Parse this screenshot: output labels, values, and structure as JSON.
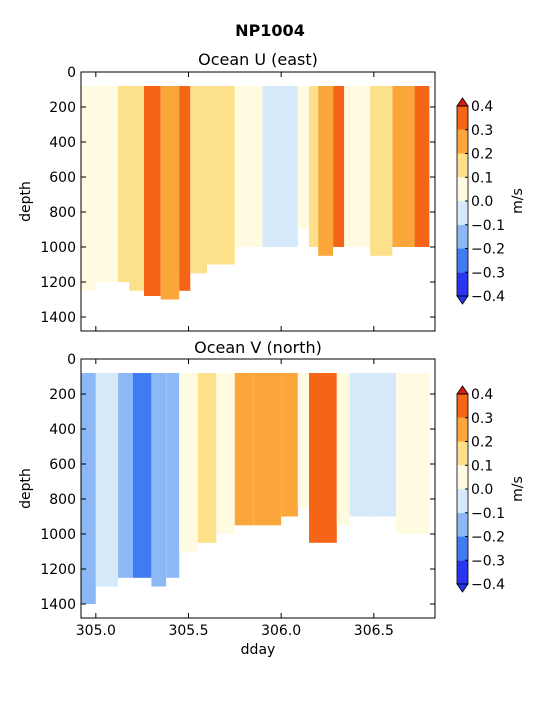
{
  "suptitle": "NP1004",
  "colorbar": {
    "unit": "m/s",
    "levels": [
      -0.4,
      -0.3,
      -0.2,
      -0.1,
      0.0,
      0.1,
      0.2,
      0.3,
      0.4
    ],
    "tick_labels": [
      "−0.4",
      "−0.3",
      "−0.2",
      "−0.1",
      "0.0",
      "0.1",
      "0.2",
      "0.3",
      "0.4"
    ],
    "colors": [
      "#2a35f0",
      "#3f7cf2",
      "#8cb8f6",
      "#d6e9fb",
      "#fffbe0",
      "#fde18a",
      "#fba63a",
      "#f46517",
      "#d41f10"
    ],
    "extend": "both"
  },
  "chart_data": [
    {
      "type": "heatmap",
      "title": "Ocean U (east)",
      "xlabel": "",
      "ylabel": "depth",
      "xlim": [
        304.92,
        306.83
      ],
      "ylim": [
        1480,
        0
      ],
      "y_ticks": [
        0,
        200,
        400,
        600,
        800,
        1000,
        1200,
        1400
      ],
      "y_tick_labels": [
        "0",
        "200",
        "400",
        "600",
        "800",
        "1000",
        "1200",
        "1400"
      ],
      "x_ticks": [
        305.0,
        305.5,
        306.0,
        306.5
      ],
      "x_tick_labels": [],
      "bins": [
        {
          "x": [
            304.92,
            305.0
          ],
          "d": [
            80,
            1250
          ],
          "v": 0.05
        },
        {
          "x": [
            305.0,
            305.12
          ],
          "d": [
            80,
            1200
          ],
          "v": 0.08
        },
        {
          "x": [
            305.12,
            305.18
          ],
          "d": [
            80,
            1200
          ],
          "v": 0.12
        },
        {
          "x": [
            305.18,
            305.26
          ],
          "d": [
            80,
            1250
          ],
          "v": 0.15
        },
        {
          "x": [
            305.26,
            305.35
          ],
          "d": [
            80,
            1280
          ],
          "v": 0.32
        },
        {
          "x": [
            305.35,
            305.45
          ],
          "d": [
            80,
            1300
          ],
          "v": 0.28
        },
        {
          "x": [
            305.45,
            305.51
          ],
          "d": [
            80,
            1250
          ],
          "v": 0.3
        },
        {
          "x": [
            305.51,
            305.6
          ],
          "d": [
            80,
            1150
          ],
          "v": 0.12
        },
        {
          "x": [
            305.6,
            305.75
          ],
          "d": [
            80,
            1100
          ],
          "v": 0.1
        },
        {
          "x": [
            305.75,
            305.9
          ],
          "d": [
            80,
            1000
          ],
          "v": 0.05
        },
        {
          "x": [
            305.9,
            306.09
          ],
          "d": [
            80,
            1000
          ],
          "v": -0.05
        },
        {
          "x": [
            306.09,
            306.15
          ],
          "d": [
            80,
            900
          ],
          "v": 0.02
        },
        {
          "x": [
            306.15,
            306.2
          ],
          "d": [
            80,
            1000
          ],
          "v": 0.12
        },
        {
          "x": [
            306.2,
            306.28
          ],
          "d": [
            80,
            1050
          ],
          "v": 0.28
        },
        {
          "x": [
            306.28,
            306.34
          ],
          "d": [
            80,
            1000
          ],
          "v": 0.35
        },
        {
          "x": [
            306.34,
            306.48
          ],
          "d": [
            80,
            1000
          ],
          "v": 0.05
        },
        {
          "x": [
            306.48,
            306.6
          ],
          "d": [
            80,
            1050
          ],
          "v": 0.15
        },
        {
          "x": [
            306.6,
            306.72
          ],
          "d": [
            80,
            1000
          ],
          "v": 0.25
        },
        {
          "x": [
            306.72,
            306.8
          ],
          "d": [
            80,
            1000
          ],
          "v": 0.35
        }
      ]
    },
    {
      "type": "heatmap",
      "title": "Ocean V (north)",
      "xlabel": "dday",
      "ylabel": "depth",
      "xlim": [
        304.92,
        306.83
      ],
      "ylim": [
        1480,
        0
      ],
      "y_ticks": [
        0,
        200,
        400,
        600,
        800,
        1000,
        1200,
        1400
      ],
      "y_tick_labels": [
        "0",
        "200",
        "400",
        "600",
        "800",
        "1000",
        "1200",
        "1400"
      ],
      "x_ticks": [
        305.0,
        305.5,
        306.0,
        306.5
      ],
      "x_tick_labels": [
        "305.0",
        "305.5",
        "306.0",
        "306.5"
      ],
      "bins": [
        {
          "x": [
            304.92,
            305.0
          ],
          "d": [
            80,
            1400
          ],
          "v": -0.12
        },
        {
          "x": [
            305.0,
            305.12
          ],
          "d": [
            80,
            1300
          ],
          "v": -0.08
        },
        {
          "x": [
            305.12,
            305.2
          ],
          "d": [
            80,
            1250
          ],
          "v": -0.12
        },
        {
          "x": [
            305.2,
            305.3
          ],
          "d": [
            80,
            1250
          ],
          "v": -0.25
        },
        {
          "x": [
            305.3,
            305.38
          ],
          "d": [
            80,
            1300
          ],
          "v": -0.2
        },
        {
          "x": [
            305.38,
            305.45
          ],
          "d": [
            80,
            1250
          ],
          "v": -0.12
        },
        {
          "x": [
            305.45,
            305.55
          ],
          "d": [
            80,
            1100
          ],
          "v": 0.05
        },
        {
          "x": [
            305.55,
            305.65
          ],
          "d": [
            80,
            1050
          ],
          "v": 0.12
        },
        {
          "x": [
            305.65,
            305.75
          ],
          "d": [
            80,
            1000
          ],
          "v": 0.08
        },
        {
          "x": [
            305.75,
            305.85
          ],
          "d": [
            80,
            950
          ],
          "v": 0.2
        },
        {
          "x": [
            305.85,
            306.0
          ],
          "d": [
            80,
            950
          ],
          "v": 0.22
        },
        {
          "x": [
            306.0,
            306.09
          ],
          "d": [
            80,
            900
          ],
          "v": 0.25
        },
        {
          "x": [
            306.09,
            306.15
          ],
          "d": [
            80,
            850
          ],
          "v": 0.0
        },
        {
          "x": [
            306.15,
            306.3
          ],
          "d": [
            80,
            1050
          ],
          "v": 0.35
        },
        {
          "x": [
            306.3,
            306.37
          ],
          "d": [
            80,
            950
          ],
          "v": 0.05
        },
        {
          "x": [
            306.37,
            306.5
          ],
          "d": [
            80,
            900
          ],
          "v": -0.02
        },
        {
          "x": [
            306.5,
            306.62
          ],
          "d": [
            80,
            900
          ],
          "v": -0.05
        },
        {
          "x": [
            306.62,
            306.8
          ],
          "d": [
            80,
            1000
          ],
          "v": 0.05
        }
      ]
    }
  ]
}
